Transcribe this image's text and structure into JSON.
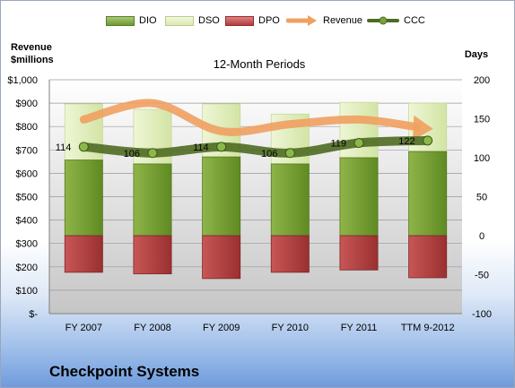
{
  "company": "Checkpoint Systems",
  "colors": {
    "dio": "#7ba23a",
    "dso": "#e4efc4",
    "dpo": "#c04848",
    "revenue": "#f0a060",
    "ccc": "#4e6a22"
  },
  "chart_data": {
    "type": "bar",
    "title": "12-Month Periods",
    "ylabel_left": "Revenue $millions",
    "ylabel_right": "Days",
    "categories": [
      "FY 2007",
      "FY 2008",
      "FY 2009",
      "FY 2010",
      "FY 2011",
      "TTM 9-2012"
    ],
    "left_axis": {
      "range": [
        0,
        1000
      ],
      "ticks": [
        "$-",
        "$100",
        "$200",
        "$300",
        "$400",
        "$500",
        "$600",
        "$700",
        "$800",
        "$900",
        "$1,000"
      ]
    },
    "right_axis": {
      "range": [
        -100,
        200
      ],
      "ticks": [
        "-100",
        "-50",
        "0",
        "50",
        "100",
        "150",
        "200"
      ]
    },
    "series": [
      {
        "name": "DIO",
        "axis": "right",
        "kind": "stacked-bar",
        "values": [
          97,
          92,
          101,
          92,
          100,
          108
        ]
      },
      {
        "name": "DSO",
        "axis": "right",
        "kind": "stacked-bar",
        "values": [
          72,
          70,
          68,
          64,
          71,
          62
        ]
      },
      {
        "name": "DPO",
        "axis": "right",
        "kind": "negative-bar",
        "values": [
          -47,
          -49,
          -55,
          -47,
          -44,
          -54
        ]
      },
      {
        "name": "Revenue",
        "axis": "left",
        "kind": "arrow-line",
        "values": [
          830,
          900,
          780,
          810,
          830,
          790
        ]
      },
      {
        "name": "CCC",
        "axis": "right",
        "kind": "line",
        "values": [
          114,
          106,
          114,
          106,
          119,
          122
        ]
      }
    ],
    "data_labels": [
      "114",
      "106",
      "114",
      "106",
      "119",
      "122"
    ],
    "legend_position": "top"
  }
}
